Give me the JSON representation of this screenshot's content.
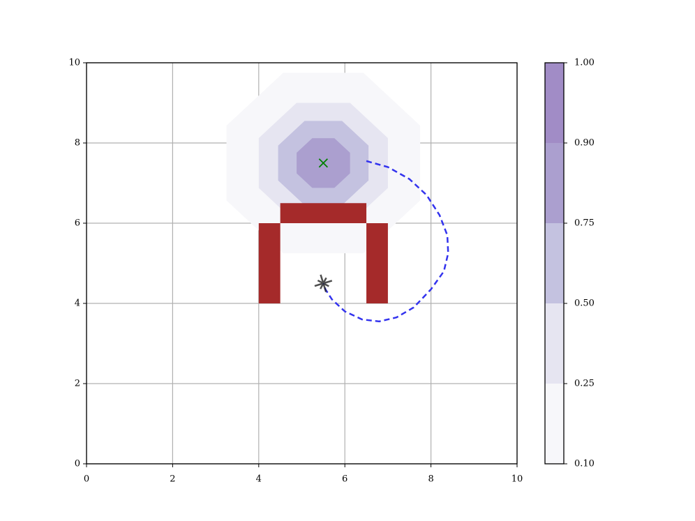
{
  "chart_data": {
    "type": "contour",
    "xlim": [
      0,
      10
    ],
    "ylim": [
      0,
      10
    ],
    "xticks": [
      0,
      2,
      4,
      6,
      8,
      10
    ],
    "yticks": [
      0,
      2,
      4,
      6,
      8,
      10
    ],
    "grid": true,
    "center": [
      5.5,
      7.5
    ],
    "contours": [
      {
        "level": 0.1,
        "radius": 2.25
      },
      {
        "level": 0.25,
        "radius": 1.5
      },
      {
        "level": 0.5,
        "radius": 1.05
      },
      {
        "level": 0.75,
        "radius": 0.62
      }
    ],
    "obstacles": [
      {
        "x": [
          4,
          4.5
        ],
        "y": [
          4,
          6
        ]
      },
      {
        "x": [
          6.5,
          7
        ],
        "y": [
          4,
          6
        ]
      },
      {
        "x": [
          4.5,
          6.5
        ],
        "y": [
          6,
          6.5
        ]
      }
    ],
    "obstacle_color": "#a52a2a",
    "goal": {
      "x": 5.5,
      "y": 7.5,
      "color": "#008000"
    },
    "robot": {
      "x": 5.5,
      "y": 4.5,
      "color": "#222222"
    },
    "path": {
      "color": "#3333ee",
      "x": [
        6.5,
        7.0,
        7.5,
        7.9,
        8.2,
        8.38,
        8.4,
        8.3,
        8.0,
        7.6,
        7.2,
        6.8,
        6.4,
        6.0,
        5.7,
        5.55,
        5.5
      ],
      "y": [
        7.55,
        7.4,
        7.1,
        6.7,
        6.2,
        5.7,
        5.25,
        4.8,
        4.35,
        3.9,
        3.65,
        3.55,
        3.6,
        3.8,
        4.1,
        4.35,
        4.5
      ]
    },
    "colorbar": {
      "ticks": [
        {
          "value": 0.1,
          "label": "0.10"
        },
        0.25,
        {
          "value": 0.5,
          "label": "0.50"
        },
        0.75,
        {
          "value": 0.9,
          "label": "0.90"
        },
        {
          "value": 1,
          "label": "1.00"
        }
      ],
      "colors": [
        "#f7f7fa",
        "#e6e5f1",
        "#c4c2e0",
        "#ab9fcf",
        "#a18cc6"
      ]
    }
  }
}
